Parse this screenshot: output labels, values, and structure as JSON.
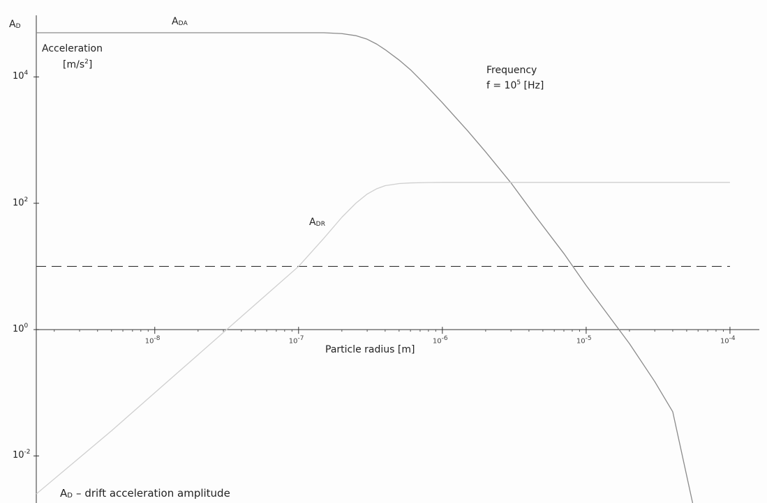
{
  "chart_data": {
    "type": "line",
    "xscale": "log",
    "yscale": "log",
    "xlim": [
      1.5e-09,
      0.00016
    ],
    "ylim": [
      0.0018,
      165000
    ],
    "x_ticks": [
      {
        "value": 1e-08,
        "base": "10",
        "exp": "-8"
      },
      {
        "value": 1e-07,
        "base": "10",
        "exp": "-7"
      },
      {
        "value": 1e-06,
        "base": "10",
        "exp": "-6"
      },
      {
        "value": 1e-05,
        "base": "10",
        "exp": "-5"
      },
      {
        "value": 0.0001,
        "base": "10",
        "exp": "-4"
      }
    ],
    "y_ticks": [
      {
        "value": 10000,
        "base": "10",
        "exp": "4"
      },
      {
        "value": 100,
        "base": "10",
        "exp": "2"
      },
      {
        "value": 1,
        "base": "10",
        "exp": "0"
      },
      {
        "value": 0.01,
        "base": "10",
        "exp": "-2"
      }
    ],
    "xlabel": "Particle radius [m]",
    "ylabel": {
      "main": "A",
      "sub": "D"
    },
    "ylabel_text_line1": "Acceleration",
    "ylabel_text_line2": "[m/s",
    "ylabel_text_sup": "2",
    "ylabel_text_end": "]",
    "annotation_frequency_line1": "Frequency",
    "annotation_frequency_line2_a": "f = 10",
    "annotation_frequency_line2_sup": "5",
    "annotation_frequency_line2_b": " [Hz]",
    "footnote_main": "A",
    "footnote_sub": "D",
    "footnote_rest": " – drift acceleration amplitude",
    "series": [
      {
        "name": "ADA",
        "label_main": "A",
        "label_sub": "DA",
        "color": "#8a8a8a",
        "points": [
          [
            1.5e-09,
            50000
          ],
          [
            1e-08,
            50000
          ],
          [
            5e-08,
            50000
          ],
          [
            1.5e-07,
            50000
          ],
          [
            2e-07,
            48500
          ],
          [
            2.5e-07,
            45000
          ],
          [
            3e-07,
            39500
          ],
          [
            3.5e-07,
            33000
          ],
          [
            4e-07,
            27000
          ],
          [
            5e-07,
            18500
          ],
          [
            6e-07,
            13000
          ],
          [
            7.5e-07,
            7800
          ],
          [
            1e-06,
            3900
          ],
          [
            1.5e-06,
            1400
          ],
          [
            2e-06,
            650
          ],
          [
            3e-06,
            210
          ],
          [
            4.5e-06,
            60
          ],
          [
            7e-06,
            16
          ],
          [
            1e-05,
            5
          ],
          [
            2e-05,
            0.6
          ],
          [
            3e-05,
            0.15
          ],
          [
            4e-05,
            0.05
          ],
          [
            5.5e-05,
            0.0018
          ]
        ]
      },
      {
        "name": "ADR",
        "label_main": "A",
        "label_sub": "DR",
        "color": "#cfcfcf",
        "points": [
          [
            1.5e-09,
            0.0025
          ],
          [
            5e-09,
            0.025
          ],
          [
            1e-08,
            0.1
          ],
          [
            2e-08,
            0.4
          ],
          [
            5e-08,
            2.5
          ],
          [
            1e-07,
            10
          ],
          [
            1.5e-07,
            28
          ],
          [
            2e-07,
            60
          ],
          [
            2.5e-07,
            100
          ],
          [
            3e-07,
            140
          ],
          [
            3.5e-07,
            170
          ],
          [
            4e-07,
            190
          ],
          [
            5e-07,
            205
          ],
          [
            6e-07,
            210
          ],
          [
            8e-07,
            213
          ],
          [
            1e-06,
            214
          ],
          [
            0.0001,
            214
          ]
        ]
      }
    ],
    "threshold": {
      "value": 10,
      "style": "dashed",
      "color": "#333333"
    }
  }
}
